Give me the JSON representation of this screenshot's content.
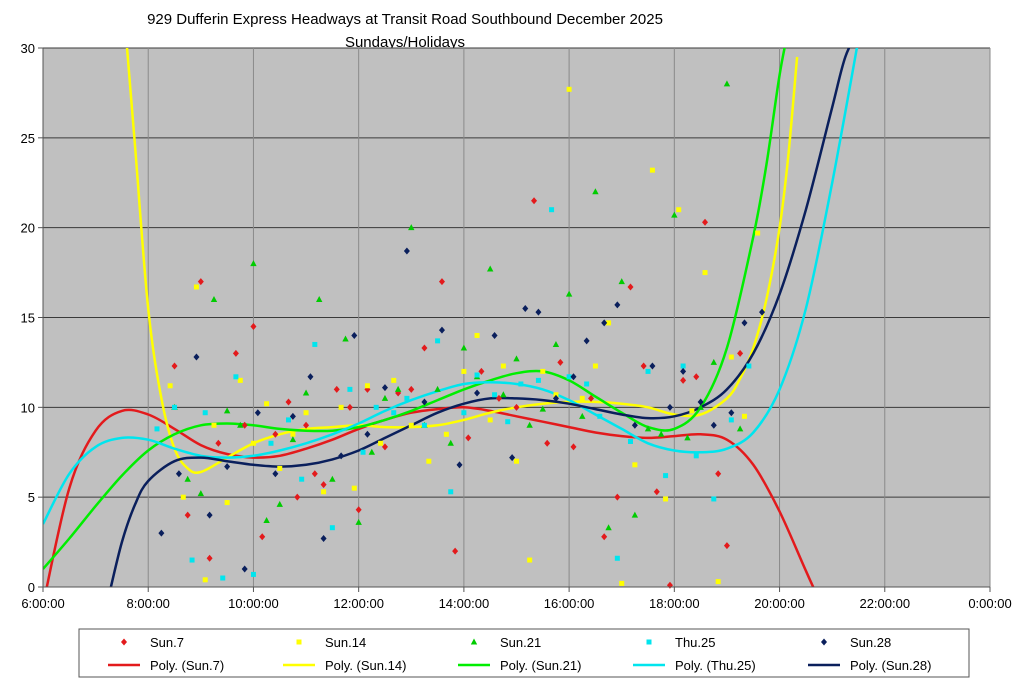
{
  "chart_data": {
    "type": "scatter",
    "title": "929 Dufferin Express Headways at Transit Road Southbound December 2025",
    "subtitle": "Sundays/Holidays",
    "xlabel": "",
    "ylabel": "",
    "x_ticks": [
      "6:00:00",
      "8:00:00",
      "10:00:00",
      "12:00:00",
      "14:00:00",
      "16:00:00",
      "18:00:00",
      "20:00:00",
      "22:00:00",
      "0:00:00"
    ],
    "y_ticks": [
      "0",
      "5",
      "10",
      "15",
      "20",
      "25",
      "30"
    ],
    "xlim": [
      "6:00:00",
      "0:00:00"
    ],
    "ylim": [
      0,
      30
    ],
    "grid": true,
    "legend_position": "bottom",
    "plot_background": "#c0c0c0",
    "series": [
      {
        "name": "Sun.7",
        "color": "#e31a1c",
        "marker": "diamond",
        "x": [
          "8:30",
          "8:45",
          "9:00",
          "9:10",
          "9:20",
          "9:40",
          "9:50",
          "10:00",
          "10:10",
          "10:25",
          "10:40",
          "10:50",
          "11:00",
          "11:10",
          "11:20",
          "11:35",
          "11:50",
          "12:00",
          "12:10",
          "12:30",
          "12:45",
          "13:00",
          "13:15",
          "13:35",
          "13:50",
          "14:05",
          "14:20",
          "14:40",
          "15:00",
          "15:20",
          "15:35",
          "15:50",
          "16:05",
          "16:25",
          "16:40",
          "16:55",
          "17:10",
          "17:25",
          "17:40",
          "17:55",
          "18:10",
          "18:25",
          "18:35",
          "18:50",
          "19:00",
          "19:15"
        ],
        "y": [
          12.3,
          4.0,
          17.0,
          1.6,
          8.0,
          13.0,
          9.0,
          14.5,
          2.8,
          8.5,
          10.3,
          5.0,
          9.0,
          6.3,
          5.7,
          11.0,
          10.0,
          4.3,
          11.0,
          7.8,
          10.8,
          11.0,
          13.3,
          17.0,
          2.0,
          8.3,
          12.0,
          10.5,
          10.0,
          21.5,
          8.0,
          12.5,
          7.8,
          10.5,
          2.8,
          5.0,
          16.7,
          12.3,
          5.3,
          0.1,
          11.5,
          11.7,
          20.3,
          6.3,
          2.3,
          13.0
        ]
      },
      {
        "name": "Sun.14",
        "color": "#ffff00",
        "marker": "square",
        "x": [
          "8:25",
          "8:40",
          "8:55",
          "9:05",
          "9:15",
          "9:30",
          "9:45",
          "10:00",
          "10:15",
          "10:30",
          "10:45",
          "11:00",
          "11:20",
          "11:40",
          "11:55",
          "12:10",
          "12:25",
          "12:40",
          "13:00",
          "13:20",
          "13:40",
          "14:00",
          "14:15",
          "14:30",
          "14:45",
          "15:00",
          "15:15",
          "15:30",
          "15:45",
          "16:00",
          "16:15",
          "16:30",
          "16:45",
          "17:00",
          "17:15",
          "17:35",
          "17:50",
          "18:05",
          "18:20",
          "18:35",
          "18:50",
          "19:05",
          "19:20",
          "19:35"
        ],
        "y": [
          11.2,
          5.0,
          16.7,
          0.4,
          9.0,
          4.7,
          11.5,
          8.0,
          10.2,
          6.6,
          8.5,
          9.7,
          5.3,
          10.0,
          5.5,
          11.2,
          8.0,
          11.5,
          9.0,
          7.0,
          8.5,
          12.0,
          14.0,
          9.3,
          12.3,
          7.0,
          1.5,
          12.0,
          10.7,
          27.7,
          10.5,
          12.3,
          14.7,
          0.2,
          6.8,
          23.2,
          4.9,
          21.0,
          9.8,
          17.5,
          0.3,
          12.8,
          9.5,
          19.7
        ]
      },
      {
        "name": "Sun.21",
        "color": "#00cc00",
        "marker": "triangle",
        "x": [
          "8:30",
          "8:45",
          "9:00",
          "9:15",
          "9:30",
          "9:45",
          "10:00",
          "10:15",
          "10:30",
          "10:45",
          "11:00",
          "11:15",
          "11:30",
          "11:45",
          "12:00",
          "12:15",
          "12:30",
          "12:45",
          "13:00",
          "13:15",
          "13:30",
          "13:45",
          "14:00",
          "14:15",
          "14:30",
          "14:45",
          "15:00",
          "15:15",
          "15:30",
          "15:45",
          "16:00",
          "16:15",
          "16:30",
          "16:45",
          "17:00",
          "17:15",
          "17:30",
          "17:45",
          "18:00",
          "18:15",
          "18:30",
          "18:45",
          "19:00",
          "19:15"
        ],
        "y": [
          10.0,
          6.0,
          5.2,
          16.0,
          9.8,
          9.0,
          18.0,
          3.7,
          4.6,
          8.2,
          10.8,
          16.0,
          6.0,
          13.8,
          3.6,
          7.5,
          10.5,
          11.0,
          20.0,
          9.0,
          11.0,
          8.0,
          13.3,
          11.7,
          17.7,
          10.7,
          12.7,
          9.0,
          9.9,
          13.5,
          16.3,
          9.5,
          22.0,
          3.3,
          17.0,
          4.0,
          8.8,
          8.5,
          20.7,
          8.3,
          10.0,
          12.5,
          28.0,
          8.8
        ]
      },
      {
        "name": "Thu.25",
        "color": "#00e5ee",
        "marker": "square",
        "x": [
          "8:10",
          "8:30",
          "8:50",
          "9:05",
          "9:25",
          "9:40",
          "10:00",
          "10:20",
          "10:40",
          "10:55",
          "11:10",
          "11:30",
          "11:50",
          "12:05",
          "12:20",
          "12:40",
          "12:55",
          "13:15",
          "13:30",
          "13:45",
          "14:00",
          "14:15",
          "14:35",
          "14:50",
          "15:05",
          "15:25",
          "15:40",
          "16:00",
          "16:20",
          "16:35",
          "16:55",
          "17:10",
          "17:30",
          "17:50",
          "18:10",
          "18:25",
          "18:45",
          "19:05",
          "19:25"
        ],
        "y": [
          8.8,
          10.0,
          1.5,
          9.7,
          0.5,
          11.7,
          0.7,
          8.0,
          9.3,
          6.0,
          13.5,
          3.3,
          11.0,
          7.5,
          10.0,
          9.7,
          10.5,
          9.0,
          13.7,
          5.3,
          9.7,
          11.8,
          10.7,
          9.2,
          11.3,
          11.5,
          21.0,
          11.7,
          11.3,
          9.5,
          1.6,
          8.1,
          12.0,
          6.2,
          12.3,
          7.3,
          4.9,
          9.3,
          12.3
        ]
      },
      {
        "name": "Sun.28",
        "color": "#0a1f5c",
        "marker": "diamond",
        "x": [
          "8:15",
          "8:35",
          "8:55",
          "9:10",
          "9:30",
          "9:50",
          "10:05",
          "10:25",
          "10:45",
          "11:05",
          "11:20",
          "11:40",
          "11:55",
          "12:10",
          "12:30",
          "12:55",
          "13:15",
          "13:35",
          "13:55",
          "14:15",
          "14:35",
          "14:55",
          "15:10",
          "15:25",
          "15:45",
          "16:05",
          "16:20",
          "16:40",
          "16:55",
          "17:15",
          "17:35",
          "17:55",
          "18:10",
          "18:30",
          "18:45",
          "19:05",
          "19:20",
          "19:40"
        ],
        "y": [
          3.0,
          6.3,
          12.8,
          4.0,
          6.7,
          1.0,
          9.7,
          6.3,
          9.5,
          11.7,
          2.7,
          7.3,
          14.0,
          8.5,
          11.1,
          18.7,
          10.3,
          14.3,
          6.8,
          10.8,
          14.0,
          7.2,
          15.5,
          15.3,
          10.5,
          11.7,
          13.7,
          14.7,
          15.7,
          9.0,
          12.3,
          10.0,
          12.0,
          10.3,
          9.0,
          9.7,
          14.7,
          15.3
        ]
      },
      {
        "name": "Poly. (Sun.7)",
        "color": "#e31a1c",
        "type": "trendline",
        "x": [
          "6:00",
          "6:30",
          "7:00",
          "7:30",
          "8:00",
          "8:30",
          "9:00",
          "9:30",
          "10:00",
          "10:30",
          "11:00",
          "11:30",
          "12:00",
          "12:30",
          "13:00",
          "13:30",
          "14:00",
          "14:30",
          "15:00",
          "15:30",
          "16:00",
          "16:30",
          "17:00",
          "17:30",
          "18:00",
          "18:30",
          "19:00",
          "19:30",
          "20:00",
          "20:30",
          "20:45"
        ],
        "y": [
          -1.0,
          5.5,
          8.7,
          9.8,
          9.6,
          8.8,
          7.9,
          7.4,
          7.2,
          7.3,
          7.7,
          8.2,
          8.8,
          9.3,
          9.7,
          9.9,
          10.0,
          9.8,
          9.5,
          9.2,
          8.9,
          8.6,
          8.4,
          8.3,
          8.4,
          8.5,
          8.2,
          6.8,
          4.2,
          0.9,
          -0.7
        ]
      },
      {
        "name": "Poly. (Sun.14)",
        "color": "#ffff00",
        "type": "trendline",
        "x": [
          "7:35",
          "7:45",
          "8:00",
          "8:15",
          "8:30",
          "8:45",
          "9:00",
          "9:30",
          "10:00",
          "10:30",
          "11:00",
          "11:30",
          "12:00",
          "12:30",
          "13:00",
          "13:30",
          "14:00",
          "14:30",
          "15:00",
          "15:30",
          "16:00",
          "16:30",
          "17:00",
          "17:30",
          "18:00",
          "18:30",
          "19:00",
          "19:15",
          "19:30",
          "19:45",
          "20:00",
          "20:10",
          "20:20"
        ],
        "y": [
          30.5,
          24.5,
          15.5,
          10.5,
          7.7,
          6.6,
          6.4,
          7.2,
          8.0,
          8.5,
          8.8,
          8.9,
          9.0,
          8.9,
          8.9,
          9.0,
          9.3,
          9.7,
          10.0,
          10.2,
          10.3,
          10.3,
          10.2,
          10.0,
          9.6,
          9.6,
          10.5,
          11.6,
          13.3,
          16.0,
          20.0,
          24.0,
          29.5
        ]
      },
      {
        "name": "Poly. (Sun.21)",
        "color": "#00ee00",
        "type": "trendline",
        "x": [
          "6:00",
          "6:30",
          "7:00",
          "7:30",
          "8:00",
          "8:30",
          "9:00",
          "9:30",
          "10:00",
          "10:30",
          "11:00",
          "11:30",
          "12:00",
          "12:30",
          "13:00",
          "13:30",
          "14:00",
          "14:30",
          "15:00",
          "15:30",
          "16:00",
          "16:30",
          "17:00",
          "17:30",
          "18:00",
          "18:30",
          "19:00",
          "19:30",
          "19:45",
          "20:00",
          "20:10"
        ],
        "y": [
          1.0,
          2.7,
          4.5,
          6.2,
          7.6,
          8.5,
          9.0,
          9.1,
          9.0,
          8.8,
          8.7,
          8.7,
          8.9,
          9.3,
          9.8,
          10.4,
          11.0,
          11.5,
          11.9,
          12.0,
          11.5,
          10.6,
          9.7,
          8.9,
          8.8,
          10.0,
          13.3,
          19.5,
          23.5,
          28.5,
          31.0
        ]
      },
      {
        "name": "Poly. (Thu.25)",
        "color": "#00e5ee",
        "type": "trendline",
        "x": [
          "6:00",
          "6:30",
          "7:00",
          "7:30",
          "8:00",
          "8:30",
          "9:00",
          "9:30",
          "10:00",
          "10:30",
          "11:00",
          "11:30",
          "12:00",
          "12:30",
          "13:00",
          "13:30",
          "14:00",
          "14:30",
          "15:00",
          "15:30",
          "16:00",
          "16:30",
          "17:00",
          "17:30",
          "18:00",
          "18:30",
          "19:00",
          "19:30",
          "20:00",
          "20:30",
          "21:00",
          "21:30"
        ],
        "y": [
          3.5,
          6.3,
          7.8,
          8.3,
          8.2,
          7.7,
          7.3,
          7.2,
          7.3,
          7.6,
          8.0,
          8.5,
          9.1,
          9.8,
          10.4,
          10.9,
          11.3,
          11.4,
          11.3,
          11.0,
          10.4,
          9.6,
          8.8,
          8.0,
          7.6,
          7.5,
          7.7,
          8.6,
          11.0,
          15.5,
          22.5,
          30.5
        ]
      },
      {
        "name": "Poly. (Sun.28)",
        "color": "#0a1f5c",
        "type": "trendline",
        "x": [
          "7:15",
          "7:30",
          "7:45",
          "8:00",
          "8:30",
          "9:00",
          "9:30",
          "10:00",
          "10:30",
          "11:00",
          "11:30",
          "12:00",
          "12:30",
          "13:00",
          "13:30",
          "14:00",
          "14:30",
          "15:00",
          "15:30",
          "16:00",
          "16:30",
          "17:00",
          "17:30",
          "18:00",
          "18:30",
          "19:00",
          "19:30",
          "20:00",
          "20:30",
          "21:00",
          "21:15",
          "21:30"
        ],
        "y": [
          -0.5,
          2.5,
          4.6,
          5.9,
          7.0,
          7.2,
          7.0,
          6.8,
          6.7,
          6.8,
          7.1,
          7.6,
          8.3,
          9.0,
          9.7,
          10.2,
          10.5,
          10.5,
          10.4,
          10.2,
          9.9,
          9.6,
          9.4,
          9.5,
          10.0,
          11.0,
          13.0,
          16.3,
          21.0,
          26.7,
          29.5,
          31.0
        ]
      }
    ]
  }
}
